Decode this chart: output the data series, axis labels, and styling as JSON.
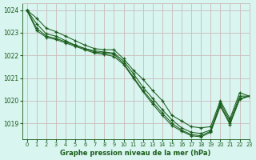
{
  "title": "Graphe pression niveau de la mer (hPa)",
  "background_color": "#d8f5f0",
  "grid_color": "#ccbbbb",
  "line_color": "#1a5c1a",
  "marker_color": "#1a5c1a",
  "xlim": [
    -0.5,
    23
  ],
  "ylim": [
    1018.3,
    1024.3
  ],
  "yticks": [
    1019,
    1020,
    1021,
    1022,
    1023,
    1024
  ],
  "xticks": [
    0,
    1,
    2,
    3,
    4,
    5,
    6,
    7,
    8,
    9,
    10,
    11,
    12,
    13,
    14,
    15,
    16,
    17,
    18,
    19,
    20,
    21,
    22,
    23
  ],
  "series": [
    [
      1024.0,
      1023.65,
      1023.2,
      1023.05,
      1022.85,
      1022.65,
      1022.45,
      1022.3,
      1022.25,
      1022.25,
      1021.85,
      1021.35,
      1020.95,
      1020.45,
      1020.0,
      1019.35,
      1019.1,
      1018.85,
      1018.8,
      1018.85,
      1020.0,
      1019.2,
      1020.35,
      1020.2
    ],
    [
      1024.0,
      1023.4,
      1022.95,
      1022.85,
      1022.65,
      1022.45,
      1022.3,
      1022.2,
      1022.15,
      1022.1,
      1021.75,
      1021.2,
      1020.6,
      1020.1,
      1019.6,
      1019.15,
      1018.8,
      1018.6,
      1018.55,
      1018.7,
      1019.9,
      1019.1,
      1020.2,
      1020.2
    ],
    [
      1024.0,
      1023.2,
      1022.85,
      1022.75,
      1022.6,
      1022.45,
      1022.3,
      1022.15,
      1022.1,
      1022.05,
      1021.65,
      1021.05,
      1020.45,
      1019.95,
      1019.45,
      1019.0,
      1018.7,
      1018.5,
      1018.45,
      1018.65,
      1019.8,
      1019.0,
      1020.1,
      1020.2
    ],
    [
      1024.0,
      1023.1,
      1022.8,
      1022.7,
      1022.55,
      1022.4,
      1022.25,
      1022.1,
      1022.05,
      1021.95,
      1021.6,
      1021.0,
      1020.4,
      1019.85,
      1019.35,
      1018.9,
      1018.65,
      1018.45,
      1018.4,
      1018.6,
      1019.75,
      1018.95,
      1020.05,
      1020.2
    ]
  ]
}
